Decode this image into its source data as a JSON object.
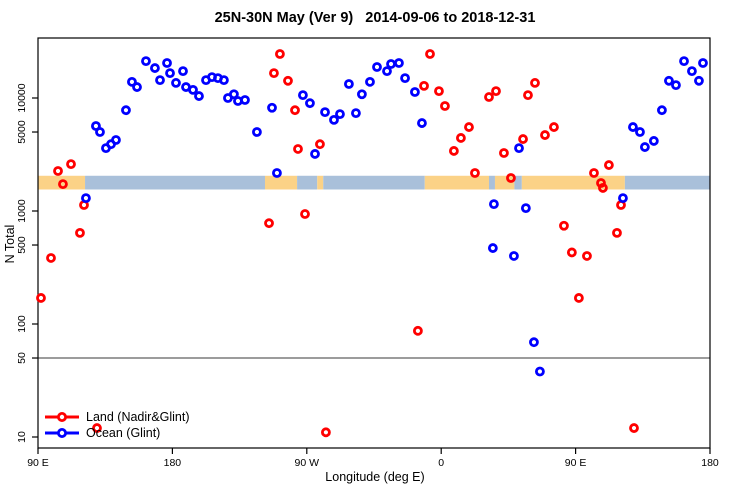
{
  "title": "25N-30N May (Ver 9)   2014-09-06 to 2018-12-31",
  "colors": {
    "land_series": "#FF0000",
    "ocean_series": "#0000FF",
    "strip_land": "#FBD287",
    "strip_ocean": "#A9C0DA",
    "axis": "#000000",
    "reference_line": "#3a3a3a",
    "background": "#FFFFFF"
  },
  "chart_data": {
    "type": "scatter",
    "title": "25N-30N May (Ver 9)   2014-09-06 to 2018-12-31",
    "xlabel": "Longitude (deg E)",
    "ylabel": "N Total",
    "x_scale": "linear",
    "y_scale": "log",
    "x_axis": {
      "note": "axis spans 450 deg starting at 90E and wrapping past 180 through 90W, 0, 90E to 180",
      "range": [
        90,
        540
      ],
      "ticks": [
        90,
        180,
        270,
        360,
        450,
        540
      ],
      "tick_labels": [
        "90 E",
        "180",
        "90 W",
        "0",
        "90 E",
        "180"
      ]
    },
    "y_axis": {
      "range": [
        8,
        34000
      ],
      "ticks": [
        10,
        50,
        100,
        500,
        1000,
        5000,
        10000
      ],
      "tick_labels": [
        "10",
        "50",
        "100",
        "500",
        "1000",
        "5000",
        "10000"
      ]
    },
    "reference_line_value": 50,
    "map_strip": {
      "description": "land/ocean geography band drawn across the plot",
      "value_range": [
        1550,
        2050
      ],
      "segments": [
        {
          "from": 90.0,
          "to": 121.5,
          "surface": "land"
        },
        {
          "from": 121.5,
          "to": 242.0,
          "surface": "ocean"
        },
        {
          "from": 242.0,
          "to": 263.5,
          "surface": "land"
        },
        {
          "from": 263.5,
          "to": 277.0,
          "surface": "ocean"
        },
        {
          "from": 277.0,
          "to": 281.0,
          "surface": "land"
        },
        {
          "from": 281.0,
          "to": 349.0,
          "surface": "ocean"
        },
        {
          "from": 349.0,
          "to": 392.0,
          "surface": "land"
        },
        {
          "from": 392.0,
          "to": 396.0,
          "surface": "ocean"
        },
        {
          "from": 396.0,
          "to": 409.0,
          "surface": "land"
        },
        {
          "from": 409.0,
          "to": 414.0,
          "surface": "ocean"
        },
        {
          "from": 414.0,
          "to": 483.0,
          "surface": "land"
        },
        {
          "from": 483.0,
          "to": 540.0,
          "surface": "ocean"
        }
      ]
    },
    "legend_position": "bottom-left",
    "series": [
      {
        "name": "Land (Nadir&Glint)",
        "color": "#FF0000",
        "marker": "open-circle",
        "points": [
          [
            103.4,
            2260
          ],
          [
            112.1,
            2600
          ],
          [
            106.7,
            1730
          ],
          [
            120.8,
            1130
          ],
          [
            118.1,
            640
          ],
          [
            98.7,
            384
          ],
          [
            92.0,
            170
          ],
          [
            129.5,
            12
          ],
          [
            252.0,
            24500
          ],
          [
            248.0,
            16600
          ],
          [
            257.4,
            14200
          ],
          [
            262.1,
            7800
          ],
          [
            278.8,
            3900
          ],
          [
            264.1,
            3540
          ],
          [
            352.5,
            24500
          ],
          [
            348.5,
            12800
          ],
          [
            358.5,
            11500
          ],
          [
            362.5,
            8500
          ],
          [
            378.6,
            5530
          ],
          [
            373.2,
            4430
          ],
          [
            368.5,
            3400
          ],
          [
            382.6,
            2170
          ],
          [
            244.7,
            780
          ],
          [
            268.8,
            940
          ],
          [
            344.4,
            87
          ],
          [
            282.8,
            11
          ],
          [
            396.7,
            11500
          ],
          [
            392.0,
            10200
          ],
          [
            422.8,
            13600
          ],
          [
            418.1,
            10600
          ],
          [
            435.5,
            5530
          ],
          [
            429.5,
            4700
          ],
          [
            414.8,
            4330
          ],
          [
            402.0,
            3260
          ],
          [
            406.7,
            1960
          ],
          [
            462.3,
            2170
          ],
          [
            472.3,
            2550
          ],
          [
            467.0,
            1770
          ],
          [
            468.3,
            1600
          ],
          [
            480.4,
            1130
          ],
          [
            442.2,
            740
          ],
          [
            477.7,
            640
          ],
          [
            447.5,
            430
          ],
          [
            457.6,
            400
          ],
          [
            452.2,
            170
          ],
          [
            489.1,
            12
          ]
        ]
      },
      {
        "name": "Ocean (Glint)",
        "color": "#0000FF",
        "marker": "open-circle",
        "points": [
          [
            162.3,
            21200
          ],
          [
            168.3,
            18400
          ],
          [
            176.4,
            20400
          ],
          [
            178.4,
            16600
          ],
          [
            171.7,
            14400
          ],
          [
            187.1,
            17300
          ],
          [
            182.4,
            13600
          ],
          [
            189.1,
            12500
          ],
          [
            193.8,
            11800
          ],
          [
            197.8,
            10400
          ],
          [
            152.9,
            13900
          ],
          [
            156.3,
            12500
          ],
          [
            202.5,
            14400
          ],
          [
            206.5,
            15300
          ],
          [
            210.5,
            15000
          ],
          [
            214.5,
            14400
          ],
          [
            217.2,
            10000
          ],
          [
            221.2,
            10800
          ],
          [
            223.9,
            9400
          ],
          [
            228.6,
            9600
          ],
          [
            148.9,
            7800
          ],
          [
            128.8,
            5650
          ],
          [
            131.5,
            5000
          ],
          [
            135.5,
            3600
          ],
          [
            138.9,
            3900
          ],
          [
            142.2,
            4250
          ],
          [
            236.6,
            5000
          ],
          [
            246.7,
            8200
          ],
          [
            267.4,
            10600
          ],
          [
            272.1,
            9000
          ],
          [
            282.2,
            7500
          ],
          [
            288.2,
            6400
          ],
          [
            292.2,
            7200
          ],
          [
            298.2,
            13300
          ],
          [
            302.9,
            7350
          ],
          [
            306.9,
            10800
          ],
          [
            312.3,
            13900
          ],
          [
            317.0,
            18800
          ],
          [
            323.7,
            17300
          ],
          [
            326.4,
            20000
          ],
          [
            331.7,
            20400
          ],
          [
            335.8,
            15000
          ],
          [
            342.4,
            11300
          ],
          [
            347.1,
            6000
          ],
          [
            275.5,
            3200
          ],
          [
            250.0,
            2170
          ],
          [
            412.1,
            3600
          ],
          [
            522.6,
            21200
          ],
          [
            535.3,
            20400
          ],
          [
            527.9,
            17300
          ],
          [
            532.6,
            14200
          ],
          [
            512.5,
            14200
          ],
          [
            517.2,
            13000
          ],
          [
            507.8,
            7800
          ],
          [
            488.4,
            5530
          ],
          [
            493.1,
            5000
          ],
          [
            502.4,
            4170
          ],
          [
            496.4,
            3680
          ],
          [
            122.1,
            1300
          ],
          [
            395.3,
            1150
          ],
          [
            416.7,
            1060
          ],
          [
            481.7,
            1300
          ],
          [
            394.6,
            470
          ],
          [
            408.7,
            400
          ],
          [
            422.1,
            69
          ],
          [
            426.1,
            38
          ]
        ]
      }
    ]
  }
}
